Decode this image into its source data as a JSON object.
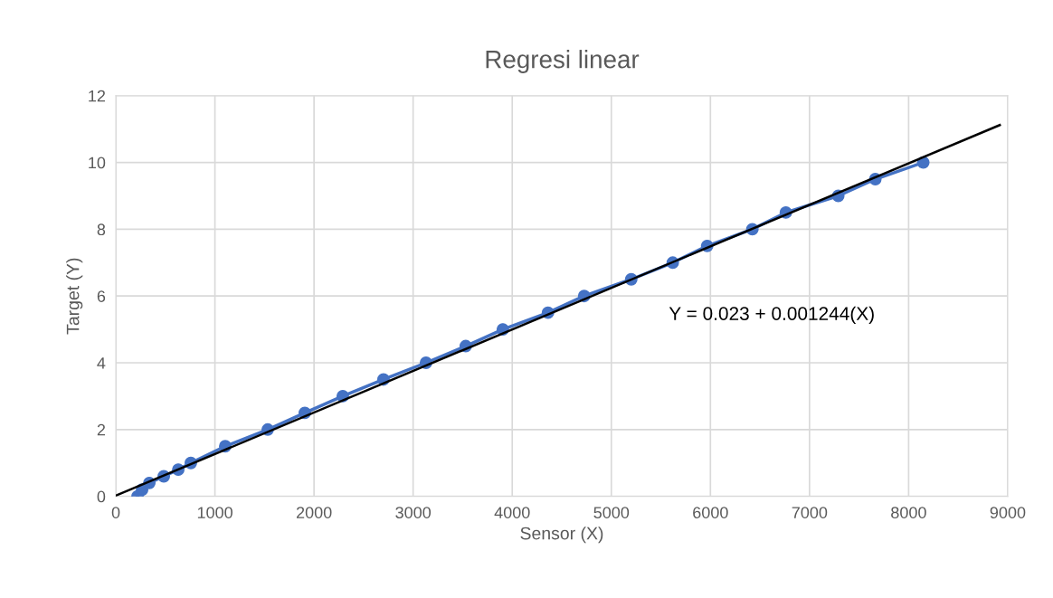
{
  "chart_data": {
    "type": "line",
    "title": "Regresi linear",
    "xlabel": "Sensor (X)",
    "ylabel": "Target (Y)",
    "series": [
      {
        "color": "#4472c4",
        "marker": "circle",
        "x": [
          219,
          265,
          338,
          484,
          630,
          757,
          1104,
          1533,
          1907,
          2290,
          2701,
          3130,
          3531,
          3905,
          4361,
          4726,
          5201,
          5620,
          5967,
          6423,
          6761,
          7290,
          7664,
          8148
        ],
        "values": [
          0,
          0.2,
          0.4,
          0.6,
          0.8,
          1.0,
          1.5,
          2.0,
          2.5,
          3.0,
          3.5,
          4.0,
          4.5,
          5.0,
          5.5,
          6.0,
          6.5,
          7.0,
          7.5,
          8.0,
          8.5,
          9.0,
          9.5,
          10.0
        ]
      },
      {
        "type": "line",
        "color": "#000000",
        "marker": "none",
        "x": [
          0,
          8920
        ],
        "values": [
          0.023,
          11.12
        ]
      }
    ],
    "annotations": [
      "Y = 0.023 + 0.001244(X)"
    ],
    "xlim": [
      0,
      9000
    ],
    "xticks": [
      0,
      1000,
      2000,
      3000,
      4000,
      5000,
      6000,
      7000,
      8000,
      9000
    ],
    "ylim": [
      0,
      12
    ],
    "yticks": [
      0,
      2,
      4,
      6,
      8,
      10,
      12
    ],
    "grid": true,
    "legend": false
  }
}
